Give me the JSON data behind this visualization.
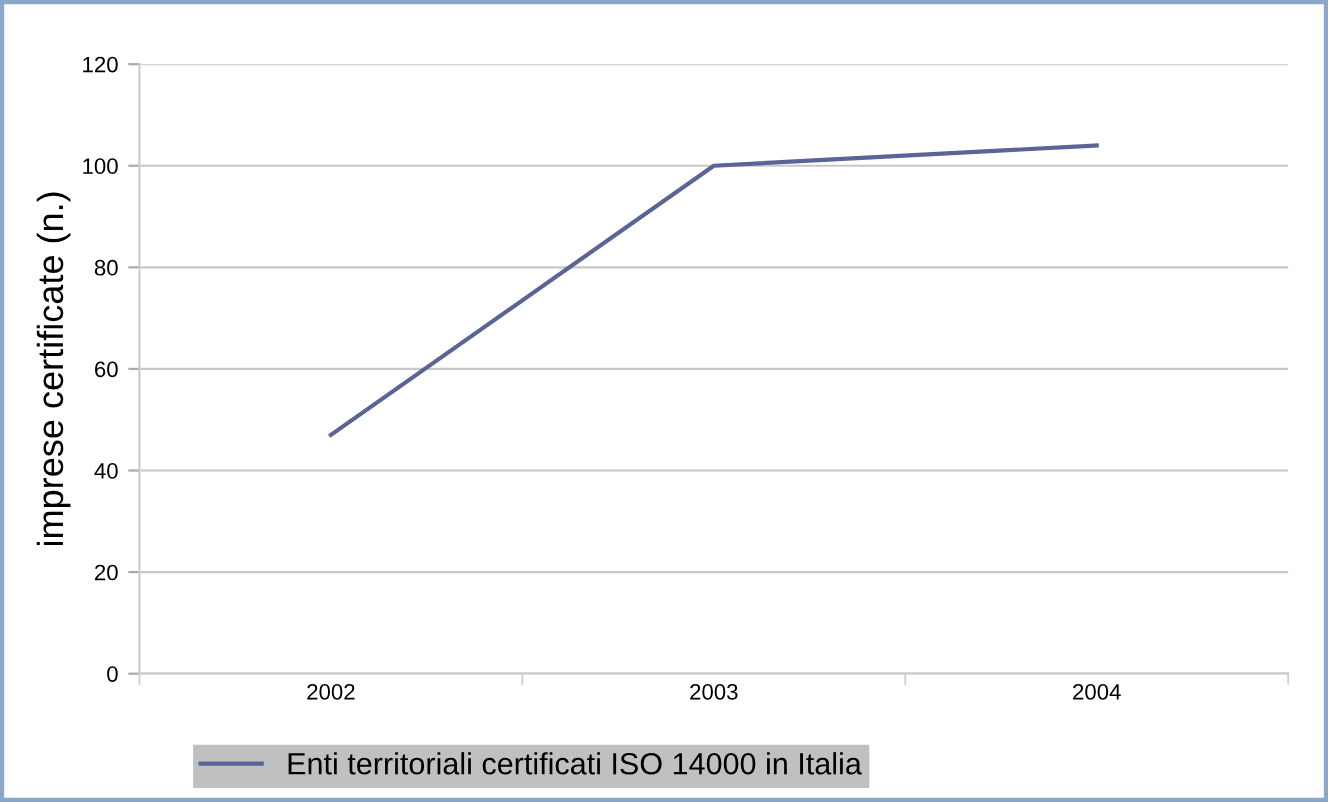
{
  "chart_data": {
    "type": "line",
    "ylabel": "imprese certificate (n.)",
    "categories": [
      "2002",
      "2003",
      "2004"
    ],
    "series": [
      {
        "name": "Enti territoriali certificati ISO 14000 in Italia",
        "color": "#5a6496",
        "values": [
          47,
          100,
          104
        ]
      }
    ],
    "ylim": [
      0,
      120
    ],
    "yticks": [
      0,
      20,
      40,
      60,
      80,
      100,
      120
    ],
    "grid": "y",
    "legend": "bottom",
    "marker": "none",
    "line_style": "solid"
  }
}
